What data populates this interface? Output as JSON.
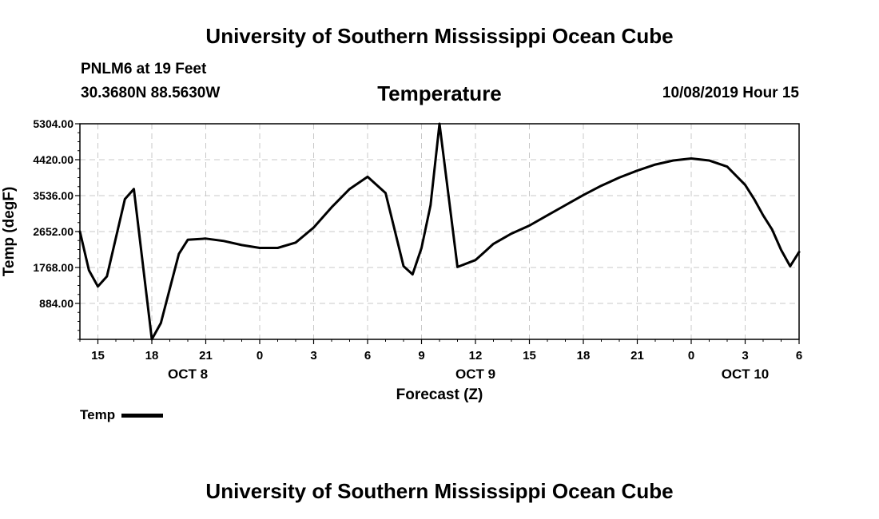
{
  "header": {
    "title": "University of Southern Mississippi Ocean Cube",
    "station": "PNLM6 at 19 Feet",
    "coords": "30.3680N 88.5630W",
    "datetime": "10/08/2019 Hour 15"
  },
  "footer": {
    "title": "University of Southern Mississippi Ocean Cube"
  },
  "colors": {
    "line": "#000000",
    "grid": "#c8c8c8",
    "background": "#ffffff"
  },
  "chart_data": {
    "type": "line",
    "title": "Temperature",
    "xlabel": "Forecast (Z)",
    "ylabel": "Temp (degF)",
    "xlim": [
      14,
      54
    ],
    "ylim": [
      0,
      5304
    ],
    "grid": true,
    "y_ticks": [
      884,
      1768,
      2652,
      3536,
      4420,
      5304
    ],
    "y_tick_labels": [
      "884.00",
      "1768.00",
      "2652.00",
      "3536.00",
      "4420.00",
      "5304.00"
    ],
    "x_ticks": [
      15,
      18,
      21,
      24,
      27,
      30,
      33,
      36,
      39,
      42,
      45,
      48,
      51,
      54
    ],
    "x_tick_labels": [
      "15",
      "18",
      "21",
      "0",
      "3",
      "6",
      "9",
      "12",
      "15",
      "18",
      "21",
      "0",
      "3",
      "6"
    ],
    "date_labels": [
      {
        "x": 20,
        "text": "OCT 8"
      },
      {
        "x": 36,
        "text": "OCT 9"
      },
      {
        "x": 51,
        "text": "OCT 10"
      }
    ],
    "legend": {
      "position": "bottom-left",
      "entries": [
        "Temp"
      ]
    },
    "series": [
      {
        "name": "Temp",
        "x": [
          14,
          14.5,
          15,
          15.5,
          16.5,
          17,
          18,
          18.5,
          19.5,
          20,
          21,
          22,
          23,
          24,
          25,
          26,
          27,
          28,
          29,
          30,
          31,
          31.5,
          32,
          32.5,
          33,
          33.5,
          34,
          35,
          36,
          36.5,
          37,
          38,
          39,
          40,
          41,
          42,
          43,
          44,
          45,
          46,
          47,
          48,
          49,
          50,
          51,
          51.5,
          52,
          52.5,
          53,
          53.5,
          54
        ],
        "values": [
          2652,
          1700,
          1300,
          1550,
          3450,
          3700,
          0,
          400,
          2100,
          2450,
          2480,
          2420,
          2320,
          2250,
          2250,
          2380,
          2750,
          3250,
          3700,
          4000,
          3600,
          2700,
          1800,
          1600,
          2250,
          3300,
          5304,
          1780,
          1950,
          2150,
          2350,
          2600,
          2800,
          3050,
          3300,
          3550,
          3780,
          3980,
          4150,
          4300,
          4400,
          4450,
          4400,
          4250,
          3800,
          3450,
          3050,
          2700,
          2200,
          1800,
          2150
        ]
      }
    ]
  }
}
